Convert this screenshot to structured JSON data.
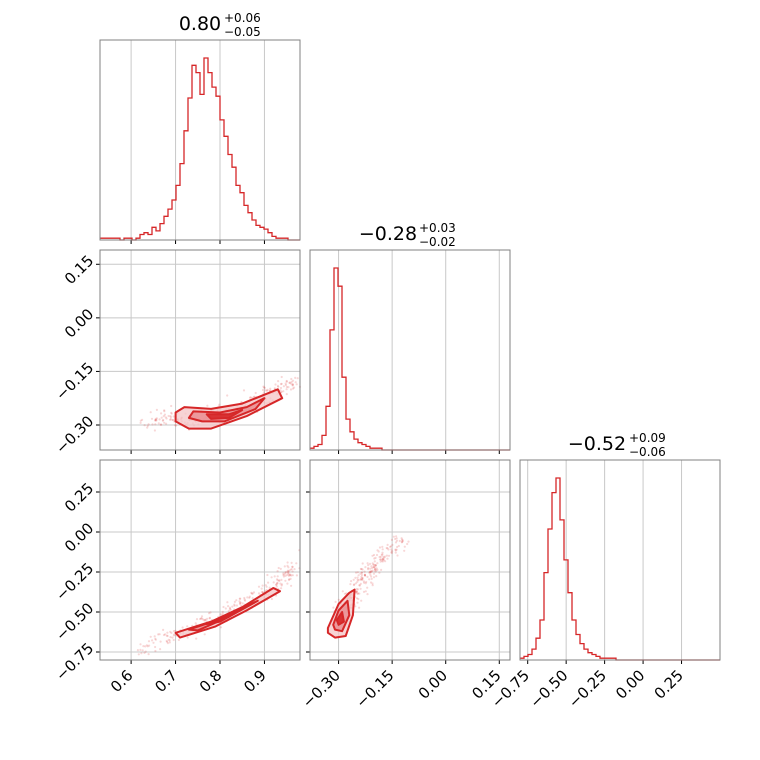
{
  "colors": {
    "accent": "#d62728",
    "accent_fill_light": "#f4c4c6",
    "accent_fill_mid": "#e8868a",
    "grid": "#c8c8c8",
    "frame": "#808080",
    "text": "#000000"
  },
  "titles": [
    {
      "value": "0.80",
      "plus": "+0.06",
      "minus": "−0.05"
    },
    {
      "value": "−0.28",
      "plus": "+0.03",
      "minus": "−0.02"
    },
    {
      "value": "−0.52",
      "plus": "+0.09",
      "minus": "−0.06"
    }
  ],
  "chart_data": [
    {
      "type": "histogram",
      "panel": "p00",
      "xlim": [
        0.53,
        0.98
      ],
      "xticks": [
        0.6,
        0.7,
        0.8,
        0.9
      ],
      "bin_edges_start": 0.53,
      "bin_width": 0.009,
      "counts": [
        1,
        1,
        1,
        1,
        1,
        0,
        1,
        1,
        0,
        1,
        3,
        4,
        3,
        7,
        5,
        9,
        13,
        17,
        22,
        30,
        42,
        60,
        78,
        96,
        92,
        80,
        100,
        92,
        84,
        79,
        66,
        57,
        47,
        40,
        30,
        26,
        19,
        15,
        11,
        8,
        7,
        6,
        4,
        2,
        1,
        1,
        1,
        0,
        0,
        0
      ]
    },
    {
      "type": "histogram",
      "panel": "p11",
      "xlim": [
        -0.38,
        0.18
      ],
      "xticks": [
        -0.3,
        -0.15,
        0.0,
        0.15
      ],
      "bin_edges_start": -0.38,
      "bin_width": 0.0112,
      "counts": [
        1,
        2,
        3,
        8,
        24,
        66,
        100,
        90,
        40,
        17,
        10,
        6,
        4,
        3,
        2,
        1,
        1,
        1,
        0,
        0,
        0,
        0,
        0,
        0,
        0,
        0,
        0,
        0,
        0,
        0,
        0,
        0,
        0,
        0,
        0,
        0,
        0,
        0,
        0,
        0,
        0,
        0,
        0,
        0,
        0,
        0,
        0,
        0,
        0,
        0
      ]
    },
    {
      "type": "histogram",
      "panel": "p22",
      "xlim": [
        -0.8,
        0.5
      ],
      "xticks": [
        -0.75,
        -0.5,
        -0.25,
        0.0,
        0.25
      ],
      "bin_edges_start": -0.8,
      "bin_width": 0.026,
      "counts": [
        1,
        2,
        3,
        6,
        12,
        22,
        48,
        72,
        92,
        100,
        77,
        55,
        37,
        22,
        14,
        9,
        6,
        4,
        3,
        2,
        1,
        1,
        1,
        1,
        0,
        0,
        0,
        0,
        0,
        0,
        0,
        0,
        0,
        0,
        0,
        0,
        0,
        0,
        0,
        0,
        0,
        0,
        0,
        0,
        0,
        0,
        0,
        0,
        0,
        0
      ]
    },
    {
      "type": "scatter_density",
      "panel": "p10",
      "xlim": [
        0.53,
        0.98
      ],
      "ylim": [
        -0.37,
        0.19
      ],
      "xticks": [
        0.6,
        0.7,
        0.8,
        0.9
      ],
      "yticks": [
        0.15,
        0.0,
        -0.15,
        -0.3
      ],
      "trend": [
        [
          0.64,
          -0.29
        ],
        [
          0.75,
          -0.28
        ],
        [
          0.85,
          -0.25
        ],
        [
          0.98,
          -0.17
        ]
      ],
      "contours": [
        [
          [
            0.72,
            -0.25
          ],
          [
            0.78,
            -0.255
          ],
          [
            0.85,
            -0.24
          ],
          [
            0.93,
            -0.2
          ],
          [
            0.94,
            -0.225
          ],
          [
            0.86,
            -0.275
          ],
          [
            0.78,
            -0.31
          ],
          [
            0.73,
            -0.31
          ],
          [
            0.7,
            -0.29
          ],
          [
            0.7,
            -0.265
          ]
        ],
        [
          [
            0.74,
            -0.262
          ],
          [
            0.8,
            -0.265
          ],
          [
            0.86,
            -0.25
          ],
          [
            0.9,
            -0.225
          ],
          [
            0.88,
            -0.255
          ],
          [
            0.81,
            -0.29
          ],
          [
            0.76,
            -0.29
          ],
          [
            0.73,
            -0.28
          ]
        ],
        [
          [
            0.77,
            -0.27
          ],
          [
            0.82,
            -0.27
          ],
          [
            0.85,
            -0.258
          ],
          [
            0.82,
            -0.28
          ],
          [
            0.78,
            -0.283
          ]
        ]
      ]
    },
    {
      "type": "scatter_density",
      "panel": "p20",
      "xlim": [
        0.53,
        0.98
      ],
      "ylim": [
        -0.8,
        0.45
      ],
      "xticks": [
        0.6,
        0.7,
        0.8,
        0.9
      ],
      "yticks": [
        0.25,
        0.0,
        -0.25,
        -0.5,
        -0.75
      ],
      "trend": [
        [
          0.62,
          -0.73
        ],
        [
          0.73,
          -0.61
        ],
        [
          0.83,
          -0.48
        ],
        [
          0.93,
          -0.33
        ],
        [
          0.98,
          -0.18
        ]
      ],
      "contours": [
        [
          [
            0.7,
            -0.63
          ],
          [
            0.78,
            -0.56
          ],
          [
            0.85,
            -0.47
          ],
          [
            0.92,
            -0.35
          ],
          [
            0.935,
            -0.37
          ],
          [
            0.86,
            -0.49
          ],
          [
            0.79,
            -0.59
          ],
          [
            0.71,
            -0.66
          ]
        ],
        [
          [
            0.73,
            -0.61
          ],
          [
            0.8,
            -0.545
          ],
          [
            0.86,
            -0.46
          ],
          [
            0.885,
            -0.43
          ],
          [
            0.82,
            -0.53
          ],
          [
            0.75,
            -0.615
          ]
        ],
        [
          [
            0.77,
            -0.575
          ],
          [
            0.82,
            -0.53
          ],
          [
            0.8,
            -0.56
          ]
        ]
      ]
    },
    {
      "type": "scatter_density",
      "panel": "p21",
      "xlim": [
        -0.38,
        0.18
      ],
      "ylim": [
        -0.8,
        0.45
      ],
      "xticks": [
        -0.3,
        -0.15,
        0.0,
        0.15
      ],
      "yticks": [
        0.25,
        0.0,
        -0.25,
        -0.5,
        -0.75
      ],
      "trend": [
        [
          -0.3,
          -0.55
        ],
        [
          -0.26,
          -0.4
        ],
        [
          -0.2,
          -0.2
        ],
        [
          -0.12,
          -0.05
        ]
      ],
      "contours": [
        [
          [
            -0.33,
            -0.6
          ],
          [
            -0.3,
            -0.45
          ],
          [
            -0.27,
            -0.38
          ],
          [
            -0.255,
            -0.36
          ],
          [
            -0.26,
            -0.52
          ],
          [
            -0.28,
            -0.65
          ],
          [
            -0.31,
            -0.66
          ],
          [
            -0.33,
            -0.63
          ]
        ],
        [
          [
            -0.315,
            -0.58
          ],
          [
            -0.3,
            -0.49
          ],
          [
            -0.275,
            -0.43
          ],
          [
            -0.27,
            -0.52
          ],
          [
            -0.29,
            -0.62
          ],
          [
            -0.31,
            -0.61
          ]
        ],
        [
          [
            -0.305,
            -0.55
          ],
          [
            -0.29,
            -0.5
          ],
          [
            -0.285,
            -0.56
          ],
          [
            -0.3,
            -0.58
          ]
        ]
      ]
    }
  ]
}
